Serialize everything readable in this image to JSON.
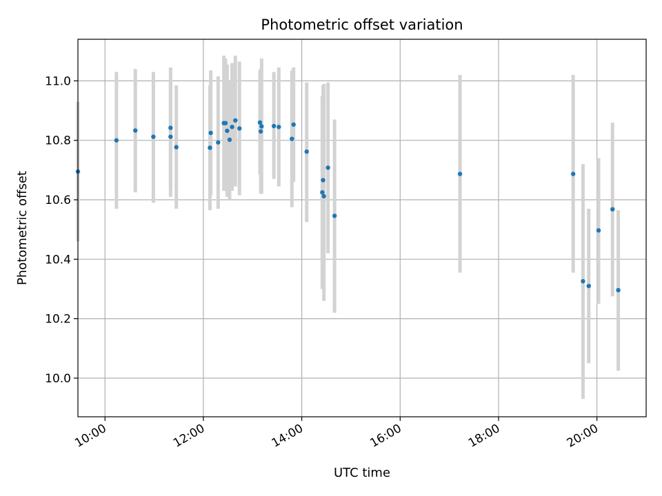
{
  "chart_data": {
    "type": "scatter",
    "title": "Photometric offset variation",
    "xlabel": "UTC time",
    "ylabel": "Photometric offset",
    "xlim": [
      "09:27",
      "21:00"
    ],
    "ylim": [
      9.87,
      11.14
    ],
    "x_ticks": [
      "10:00",
      "12:00",
      "14:00",
      "16:00",
      "18:00",
      "20:00"
    ],
    "y_ticks": [
      "10.0",
      "10.2",
      "10.4",
      "10.6",
      "10.8",
      "11.0"
    ],
    "grid": true,
    "colors": {
      "point": "#1f77b4",
      "errorbar": "#d3d3d3",
      "grid": "#b0b0b0"
    },
    "points": [
      {
        "t": "09:27",
        "y": 10.695,
        "lo": 10.46,
        "hi": 10.93
      },
      {
        "t": "10:14",
        "y": 10.8,
        "lo": 10.57,
        "hi": 11.03
      },
      {
        "t": "10:37",
        "y": 10.833,
        "lo": 10.625,
        "hi": 11.04
      },
      {
        "t": "10:59",
        "y": 10.812,
        "lo": 10.59,
        "hi": 11.03
      },
      {
        "t": "11:20",
        "y": 10.842,
        "lo": 10.64,
        "hi": 11.045
      },
      {
        "t": "11:20",
        "y": 10.812,
        "lo": 10.61,
        "hi": 11.01
      },
      {
        "t": "11:27",
        "y": 10.777,
        "lo": 10.57,
        "hi": 10.985
      },
      {
        "t": "12:08",
        "y": 10.775,
        "lo": 10.565,
        "hi": 10.985
      },
      {
        "t": "12:09",
        "y": 10.825,
        "lo": 10.615,
        "hi": 11.035
      },
      {
        "t": "12:18",
        "y": 10.793,
        "lo": 10.57,
        "hi": 11.015
      },
      {
        "t": "12:25",
        "y": 10.858,
        "lo": 10.63,
        "hi": 11.085
      },
      {
        "t": "12:27",
        "y": 10.858,
        "lo": 10.64,
        "hi": 11.075
      },
      {
        "t": "12:29",
        "y": 10.832,
        "lo": 10.61,
        "hi": 11.055
      },
      {
        "t": "12:32",
        "y": 10.802,
        "lo": 10.6,
        "hi": 11.0
      },
      {
        "t": "12:35",
        "y": 10.845,
        "lo": 10.63,
        "hi": 11.06
      },
      {
        "t": "12:39",
        "y": 10.867,
        "lo": 10.645,
        "hi": 11.085
      },
      {
        "t": "12:44",
        "y": 10.84,
        "lo": 10.615,
        "hi": 11.065
      },
      {
        "t": "13:09",
        "y": 10.86,
        "lo": 10.685,
        "hi": 11.035
      },
      {
        "t": "13:10",
        "y": 10.83,
        "lo": 10.62,
        "hi": 11.04
      },
      {
        "t": "13:11",
        "y": 10.847,
        "lo": 10.62,
        "hi": 11.075
      },
      {
        "t": "13:26",
        "y": 10.848,
        "lo": 10.67,
        "hi": 11.03
      },
      {
        "t": "13:32",
        "y": 10.845,
        "lo": 10.645,
        "hi": 11.045
      },
      {
        "t": "13:48",
        "y": 10.805,
        "lo": 10.575,
        "hi": 11.035
      },
      {
        "t": "13:50",
        "y": 10.853,
        "lo": 10.66,
        "hi": 11.045
      },
      {
        "t": "14:06",
        "y": 10.762,
        "lo": 10.525,
        "hi": 10.995
      },
      {
        "t": "14:25",
        "y": 10.625,
        "lo": 10.3,
        "hi": 10.95
      },
      {
        "t": "14:26",
        "y": 10.666,
        "lo": 10.345,
        "hi": 10.985
      },
      {
        "t": "14:27",
        "y": 10.612,
        "lo": 10.26,
        "hi": 10.99
      },
      {
        "t": "14:32",
        "y": 10.708,
        "lo": 10.42,
        "hi": 10.995
      },
      {
        "t": "14:40",
        "y": 10.546,
        "lo": 10.22,
        "hi": 10.87
      },
      {
        "t": "17:13",
        "y": 10.687,
        "lo": 10.355,
        "hi": 11.02
      },
      {
        "t": "19:31",
        "y": 10.687,
        "lo": 10.355,
        "hi": 11.02
      },
      {
        "t": "19:43",
        "y": 10.326,
        "lo": 9.93,
        "hi": 10.72
      },
      {
        "t": "19:50",
        "y": 10.31,
        "lo": 10.05,
        "hi": 10.57
      },
      {
        "t": "20:02",
        "y": 10.497,
        "lo": 10.25,
        "hi": 10.74
      },
      {
        "t": "20:19",
        "y": 10.568,
        "lo": 10.275,
        "hi": 10.86
      },
      {
        "t": "20:26",
        "y": 10.296,
        "lo": 10.025,
        "hi": 10.565
      }
    ]
  }
}
